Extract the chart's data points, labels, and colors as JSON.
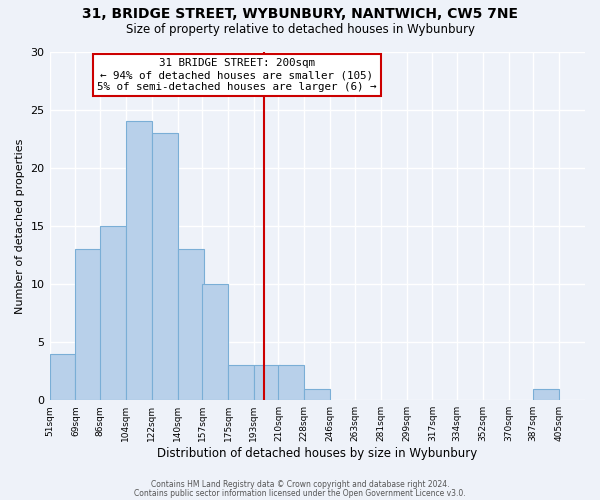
{
  "title": "31, BRIDGE STREET, WYBUNBURY, NANTWICH, CW5 7NE",
  "subtitle": "Size of property relative to detached houses in Wybunbury",
  "xlabel": "Distribution of detached houses by size in Wybunbury",
  "ylabel": "Number of detached properties",
  "bar_edges": [
    51,
    69,
    86,
    104,
    122,
    140,
    157,
    175,
    193,
    210,
    228,
    246,
    263,
    281,
    299,
    317,
    334,
    352,
    370,
    387,
    405
  ],
  "bar_heights": [
    4,
    13,
    15,
    24,
    23,
    13,
    10,
    3,
    3,
    3,
    1,
    0,
    0,
    0,
    0,
    0,
    0,
    0,
    0,
    1,
    0
  ],
  "bar_color": "#b8d0ea",
  "bar_edge_color": "#7aaed6",
  "vline_x": 200,
  "vline_color": "#cc0000",
  "annotation_line1": "31 BRIDGE STREET: 200sqm",
  "annotation_line2": "← 94% of detached houses are smaller (105)",
  "annotation_line3": "5% of semi-detached houses are larger (6) →",
  "annotation_box_color": "#cc0000",
  "annotation_fill": "white",
  "tick_labels": [
    "51sqm",
    "69sqm",
    "86sqm",
    "104sqm",
    "122sqm",
    "140sqm",
    "157sqm",
    "175sqm",
    "193sqm",
    "210sqm",
    "228sqm",
    "246sqm",
    "263sqm",
    "281sqm",
    "299sqm",
    "317sqm",
    "334sqm",
    "352sqm",
    "370sqm",
    "387sqm",
    "405sqm"
  ],
  "ylim": [
    0,
    30
  ],
  "yticks": [
    0,
    5,
    10,
    15,
    20,
    25,
    30
  ],
  "footer1": "Contains HM Land Registry data © Crown copyright and database right 2024.",
  "footer2": "Contains public sector information licensed under the Open Government Licence v3.0.",
  "background_color": "#eef2f9"
}
